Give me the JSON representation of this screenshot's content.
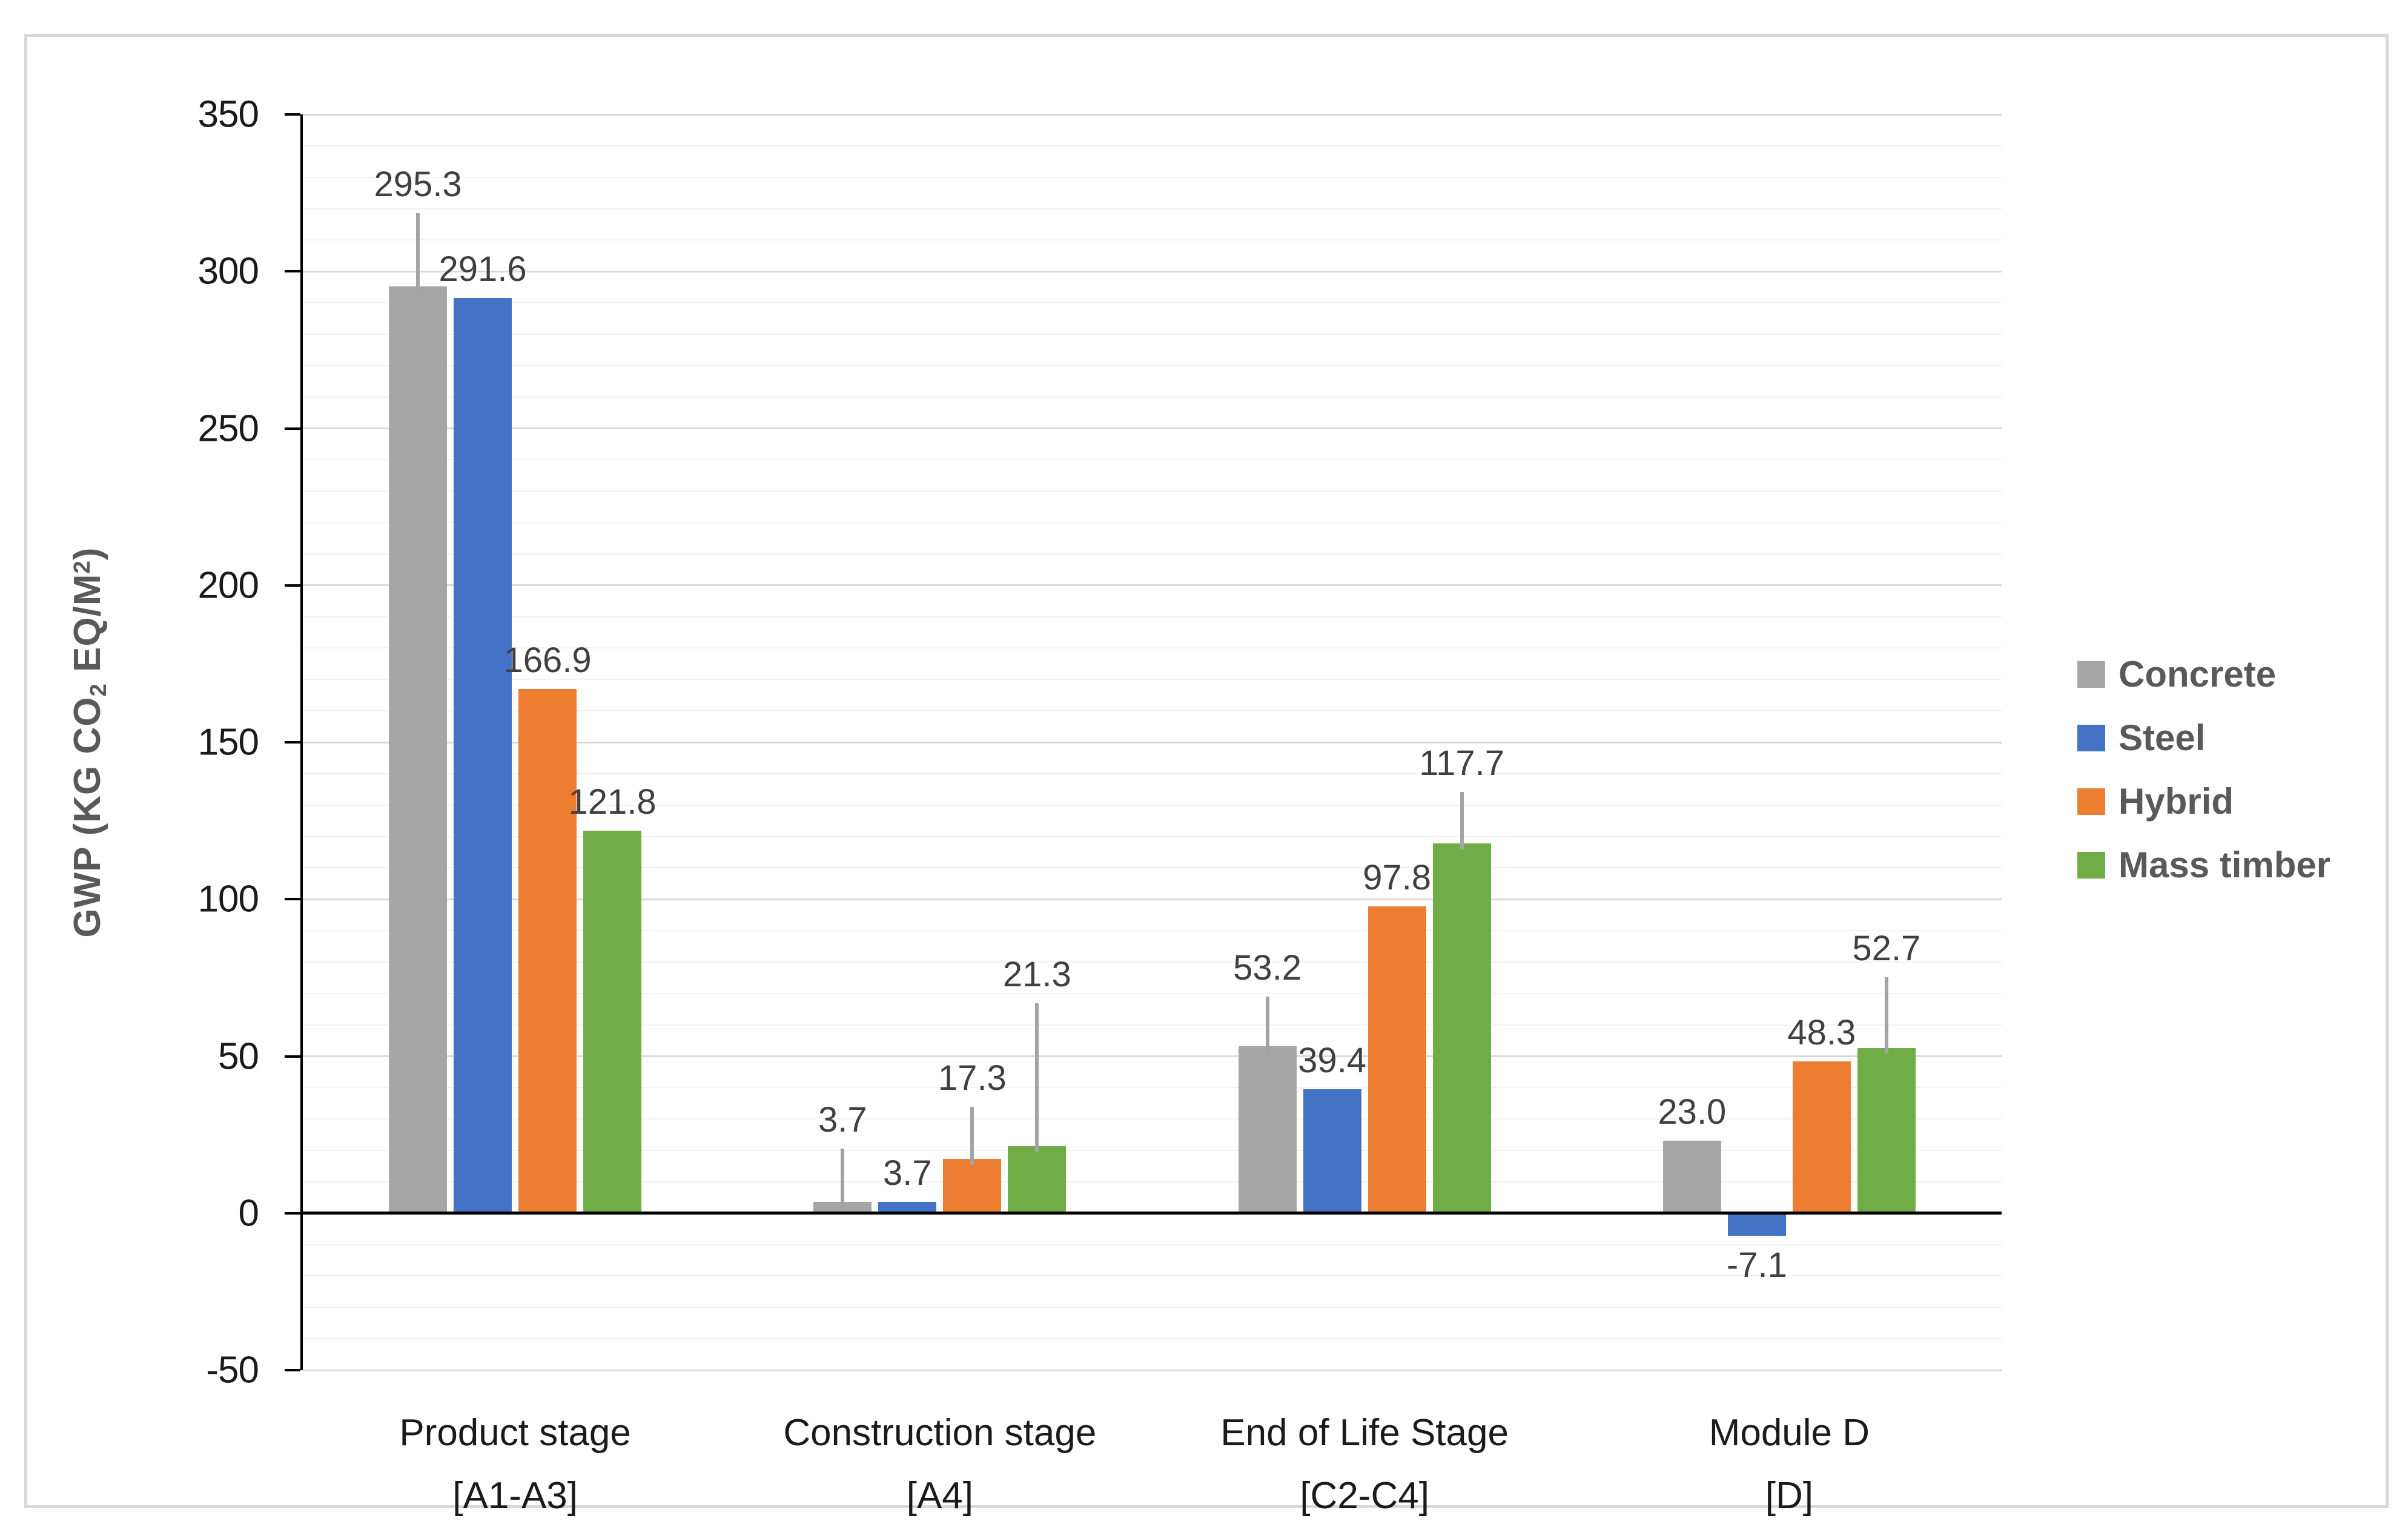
{
  "chart_data": {
    "type": "bar",
    "title": "",
    "ylabel_parts": {
      "pre": "GWP (KG CO",
      "sub": "2",
      "mid": " EQ/M",
      "sup": "2",
      "post": ")"
    },
    "axis": {
      "ymin": -50,
      "ymax": 350,
      "major_step": 50,
      "minor_step": 10,
      "ticks": [
        {
          "v": 350,
          "label": "350"
        },
        {
          "v": 300,
          "label": "300"
        },
        {
          "v": 250,
          "label": "250"
        },
        {
          "v": 200,
          "label": "200"
        },
        {
          "v": 150,
          "label": "150"
        },
        {
          "v": 100,
          "label": "100"
        },
        {
          "v": 50,
          "label": "50"
        },
        {
          "v": 0,
          "label": "0"
        },
        {
          "v": -50,
          "label": "-50"
        }
      ]
    },
    "grid": true,
    "legend_position": "right",
    "categories": [
      {
        "label": "Product stage",
        "sub": "[A1-A3]"
      },
      {
        "label": "Construction stage",
        "sub": "[A4]"
      },
      {
        "label": "End of Life Stage",
        "sub": "[C2-C4]"
      },
      {
        "label": "Module D",
        "sub": "[D]"
      }
    ],
    "series": [
      {
        "name": "Concrete",
        "color": "#a6a6a6",
        "values": [
          295.3,
          3.7,
          53.2,
          23.0
        ],
        "labels": [
          "295.3",
          "3.7",
          "53.2",
          "23.0"
        ],
        "error_top": [
          318.5,
          20.5,
          69.0,
          null
        ]
      },
      {
        "name": "Steel",
        "color": "#4472c4",
        "values": [
          291.6,
          3.7,
          39.4,
          -7.1
        ],
        "labels": [
          "291.6",
          "3.7",
          "39.4",
          "-7.1"
        ],
        "error_top": [
          null,
          null,
          null,
          null
        ]
      },
      {
        "name": "Hybrid",
        "color": "#ed7d31",
        "values": [
          166.9,
          17.3,
          97.8,
          48.3
        ],
        "labels": [
          "166.9",
          "17.3",
          "97.8",
          "48.3"
        ],
        "error_top": [
          null,
          33.8,
          null,
          null
        ]
      },
      {
        "name": "Mass timber",
        "color": "#70ad47",
        "values": [
          121.8,
          21.3,
          117.7,
          52.7
        ],
        "labels": [
          "121.8",
          "21.3",
          "117.7",
          "52.7"
        ],
        "error_top": [
          null,
          66.8,
          134.2,
          75.1
        ]
      }
    ],
    "error_bar_color": "#a3a3a3"
  }
}
